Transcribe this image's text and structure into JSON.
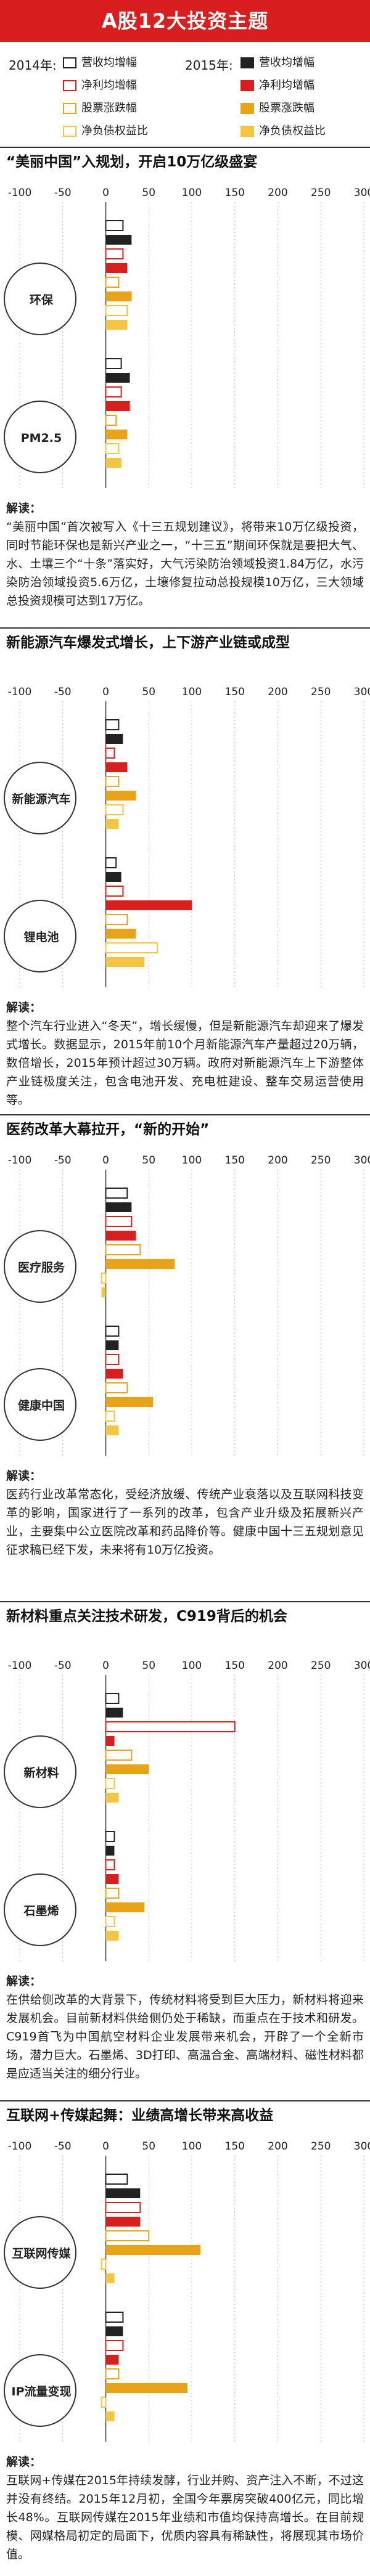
{
  "title": "A股12大投资主题",
  "legend": {
    "year_2014": "2014年:",
    "year_2015": "2015年:",
    "items": [
      {
        "key": "rev",
        "label": "营收均增幅"
      },
      {
        "key": "profit",
        "label": "净利均增幅"
      },
      {
        "key": "stock",
        "label": "股票涨跌幅"
      },
      {
        "key": "debt",
        "label": "净负债权益比"
      }
    ]
  },
  "colors": {
    "rev_2015": "#222222",
    "profit_2014_border": "#d81e1e",
    "profit_2015": "#d81e1e",
    "stock_2014_border": "#e8a317",
    "stock_2015": "#e8a317",
    "debt_2014_border": "#f4c542",
    "debt_2015": "#f4c542"
  },
  "axis_ticks": [
    "-100",
    "-50",
    "0",
    "50",
    "100",
    "150",
    "200",
    "250",
    "300"
  ],
  "sections": [
    {
      "heading": "“美丽中国”入规划，开启10万亿级盛宴",
      "explain_label": "解读：",
      "explain": "“美丽中国”首次被写入《十三五规划建议》，将带来10万亿级投资，同时节能环保也是新兴产业之一，“十三五”期间环保就是要把大气、水、土壤三个“十条”落实好，大气污染防治领域投资1.84万亿，水污染防治领域投资5.6万亿，土壤修复拉动总投规模10万亿，三大领域总投资规模可达到17万亿。"
    },
    {
      "heading": "新能源汽车爆发式增长，上下游产业链或成型",
      "explain_label": "解读：",
      "explain": "整个汽车行业进入“冬天”，增长缓慢，但是新能源汽车却迎来了爆发式增长。数据显示，2015年前10个月新能源汽车产量超过20万辆，数倍增长，2015年预计超过30万辆。政府对新能源汽车上下游整体产业链极度关注，包含电池开发、充电桩建设、整车交易运营使用等。"
    },
    {
      "heading": "医药改革大幕拉开，“新的开始”",
      "explain_label": "解读：",
      "explain": "医药行业改革常态化，受经济放缓、传统产业衰落以及互联网科技变革的影响，国家进行了一系列的改革，包含产业升级及拓展新兴产业，主要集中公立医院改革和药品降价等。健康中国十三五规划意见征求稿已经下发，未来将有10万亿投资。"
    },
    {
      "heading": "新材料重点关注技术研发，C919背后的机会",
      "explain_label": "解读：",
      "explain": "在供给侧改革的大背景下，传统材料将受到巨大压力，新材料将迎来发展机会。目前新材料供给侧仍处于稀缺，而重点在于技术和研发。C919首飞为中国航空材料企业发展带来机会，开辟了一个全新市场，潜力巨大。石墨烯、3D打印、高温合金、高端材料、磁性材料都是应适当关注的细分行业。"
    },
    {
      "heading": "互联网+传媒起舞：业绩高增长带来高收益",
      "explain_label": "解读：",
      "explain": "互联网+传媒在2015年持续发酵，行业并购、资产注入不断，不过这并没有终结。2015年12月初，全国今年票房突破400亿元，同比增长48%。互联网传媒在2015年业绩和市值均保持高增长。在目前规模、网媒格局初定的局面下，优质内容具有稀缺性，将展现其市场价值。"
    }
  ],
  "chart_data": [
    {
      "type": "bar",
      "orientation": "horizontal",
      "title": "“美丽中国”入规划，开启10万亿级盛宴",
      "xlim": [
        -100,
        300
      ],
      "categories": [
        "环保",
        "PM2.5"
      ],
      "series": [
        {
          "name": "2014年 营收均增幅",
          "values": [
            20,
            18
          ]
        },
        {
          "name": "2015年 营收均增幅",
          "values": [
            30,
            28
          ]
        },
        {
          "name": "2014年 净利均增幅",
          "values": [
            20,
            18
          ]
        },
        {
          "name": "2015年 净利均增幅",
          "values": [
            25,
            28
          ]
        },
        {
          "name": "2014年 股票涨跌幅",
          "values": [
            15,
            12
          ]
        },
        {
          "name": "2015年 股票涨跌幅",
          "values": [
            30,
            25
          ]
        },
        {
          "name": "2014年 净负债权益比",
          "values": [
            25,
            15
          ]
        },
        {
          "name": "2015年 净负债权益比",
          "values": [
            25,
            18
          ]
        }
      ]
    },
    {
      "type": "bar",
      "orientation": "horizontal",
      "title": "新能源汽车爆发式增长，上下游产业链或成型",
      "xlim": [
        -100,
        300
      ],
      "categories": [
        "新能源汽车",
        "锂电池"
      ],
      "series": [
        {
          "name": "2014年 营收均增幅",
          "values": [
            15,
            12
          ]
        },
        {
          "name": "2015年 营收均增幅",
          "values": [
            20,
            18
          ]
        },
        {
          "name": "2014年 净利均增幅",
          "values": [
            10,
            20
          ]
        },
        {
          "name": "2015年 净利均增幅",
          "values": [
            25,
            100
          ]
        },
        {
          "name": "2014年 股票涨跌幅",
          "values": [
            15,
            25
          ]
        },
        {
          "name": "2015年 股票涨跌幅",
          "values": [
            35,
            35
          ]
        },
        {
          "name": "2014年 净负债权益比",
          "values": [
            20,
            60
          ]
        },
        {
          "name": "2015年 净负债权益比",
          "values": [
            15,
            45
          ]
        }
      ]
    },
    {
      "type": "bar",
      "orientation": "horizontal",
      "title": "医药改革大幕拉开，“新的开始”",
      "xlim": [
        -100,
        300
      ],
      "categories": [
        "医疗服务",
        "健康中国"
      ],
      "series": [
        {
          "name": "2014年 营收均增幅",
          "values": [
            25,
            15
          ]
        },
        {
          "name": "2015年 营收均增幅",
          "values": [
            30,
            15
          ]
        },
        {
          "name": "2014年 净利均增幅",
          "values": [
            30,
            15
          ]
        },
        {
          "name": "2015年 净利均增幅",
          "values": [
            35,
            20
          ]
        },
        {
          "name": "2014年 股票涨跌幅",
          "values": [
            40,
            25
          ]
        },
        {
          "name": "2015年 股票涨跌幅",
          "values": [
            80,
            55
          ]
        },
        {
          "name": "2014年 净负债权益比",
          "values": [
            -5,
            10
          ]
        },
        {
          "name": "2015年 净负债权益比",
          "values": [
            -5,
            15
          ]
        }
      ]
    },
    {
      "type": "bar",
      "orientation": "horizontal",
      "title": "新材料重点关注技术研发，C919背后的机会",
      "xlim": [
        -100,
        300
      ],
      "categories": [
        "新材料",
        "石墨烯"
      ],
      "series": [
        {
          "name": "2014年 营收均增幅",
          "values": [
            15,
            10
          ]
        },
        {
          "name": "2015年 营收均增幅",
          "values": [
            20,
            10
          ]
        },
        {
          "name": "2014年 净利均增幅",
          "values": [
            150,
            10
          ]
        },
        {
          "name": "2015年 净利均增幅",
          "values": [
            10,
            15
          ]
        },
        {
          "name": "2014年 股票涨跌幅",
          "values": [
            30,
            15
          ]
        },
        {
          "name": "2015年 股票涨跌幅",
          "values": [
            50,
            45
          ]
        },
        {
          "name": "2014年 净负债权益比",
          "values": [
            10,
            10
          ]
        },
        {
          "name": "2015年 净负债权益比",
          "values": [
            15,
            15
          ]
        }
      ]
    },
    {
      "type": "bar",
      "orientation": "horizontal",
      "title": "互联网+传媒起舞：业绩高增长带来高收益",
      "xlim": [
        -100,
        300
      ],
      "categories": [
        "互联网传媒",
        "IP流量变现"
      ],
      "series": [
        {
          "name": "2014年 营收均增幅",
          "values": [
            25,
            20
          ]
        },
        {
          "name": "2015年 营收均增幅",
          "values": [
            40,
            20
          ]
        },
        {
          "name": "2014年 净利均增幅",
          "values": [
            40,
            20
          ]
        },
        {
          "name": "2015年 净利均增幅",
          "values": [
            40,
            15
          ]
        },
        {
          "name": "2014年 股票涨跌幅",
          "values": [
            50,
            15
          ]
        },
        {
          "name": "2015年 股票涨跌幅",
          "values": [
            110,
            95
          ]
        },
        {
          "name": "2014年 净负债权益比",
          "values": [
            -5,
            -5
          ]
        },
        {
          "name": "2015年 净负债权益比",
          "values": [
            10,
            10
          ]
        }
      ]
    }
  ]
}
